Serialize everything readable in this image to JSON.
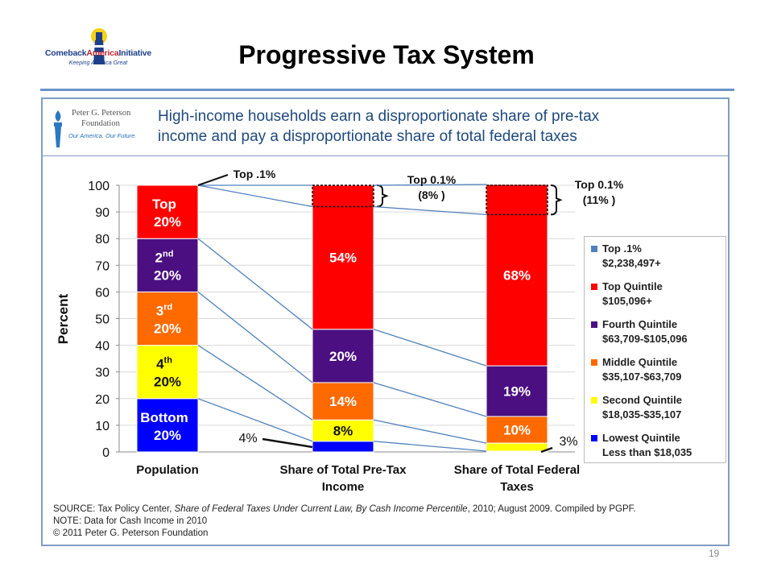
{
  "header": {
    "title": "Progressive Tax System",
    "logo": {
      "name": "Comeback",
      "name_accent": "America",
      "name_end": "Initiative",
      "tagline": "Keeping America Great"
    }
  },
  "banner": {
    "org_line1": "Peter G. Peterson",
    "org_line2": "Foundation",
    "org_tagline": "Our America. Our Future.",
    "headline_line1": "High-income households earn a disproportionate share of pre-tax",
    "headline_line2": "income and pay a disproportionate share of total federal taxes"
  },
  "chart_data": {
    "type": "bar",
    "stacked": true,
    "ylabel": "Percent",
    "ylim": [
      0,
      100
    ],
    "yticks": [
      0,
      10,
      20,
      30,
      40,
      50,
      60,
      70,
      80,
      90,
      100
    ],
    "categories": [
      "Population",
      "Share of Total Pre-Tax Income",
      "Share of Total Federal Taxes"
    ],
    "category_lines": [
      [
        "Population"
      ],
      [
        "Share of Total Pre-Tax",
        "Income"
      ],
      [
        "Share of Total Federal",
        "Taxes"
      ]
    ],
    "series": [
      {
        "key": "lowest",
        "color": "#0000ff",
        "values": [
          20,
          4,
          0.3
        ]
      },
      {
        "key": "second",
        "color": "#ffff00",
        "values": [
          20,
          8,
          3
        ]
      },
      {
        "key": "middle",
        "color": "#ff6a00",
        "values": [
          20,
          14,
          10
        ]
      },
      {
        "key": "fourth",
        "color": "#4b0f82",
        "values": [
          20,
          20,
          19
        ]
      },
      {
        "key": "top",
        "color": "#ff0000",
        "values": [
          20,
          54,
          68
        ]
      }
    ],
    "top_pct": {
      "color": "#4f81bd",
      "values": [
        0.1,
        8,
        11
      ]
    },
    "bar_labels": [
      [
        {
          "base": "Bottom",
          "l2": "20%"
        },
        {
          "base": "4",
          "sup": "th",
          "l2": "20%"
        },
        {
          "base": "3",
          "sup": "rd",
          "l2": "20%"
        },
        {
          "base": "2",
          "sup": "nd",
          "l2": "20%"
        },
        {
          "base": "Top",
          "l2": "20%"
        }
      ],
      [
        {
          "l2": ""
        },
        {
          "l2": "8%"
        },
        {
          "l2": "14%"
        },
        {
          "l2": "20%"
        },
        {
          "l2": "54%"
        }
      ],
      [
        {
          "l2": ""
        },
        {
          "l2": ""
        },
        {
          "l2": "10%"
        },
        {
          "l2": "19%"
        },
        {
          "l2": "68%"
        }
      ]
    ],
    "callouts": {
      "pop_top": "Top .1%",
      "income_top_l1": "Top 0.1%",
      "income_top_l2": "(8% )",
      "taxes_top_l1": "Top 0.1%",
      "taxes_top_l2": "(11% )",
      "income_low": "4%",
      "taxes_low": "3%"
    },
    "legend": [
      {
        "color": "#4f81bd",
        "l1": "Top .1%",
        "l2": "$2,238,497+"
      },
      {
        "color": "#ff0000",
        "l1": "Top Quintile",
        "l2": "$105,096+"
      },
      {
        "color": "#4b0f82",
        "l1": "Fourth Quintile",
        "l2": "$63,709-$105,096"
      },
      {
        "color": "#ff6a00",
        "l1": "Middle Quintile",
        "l2": "$35,107-$63,709"
      },
      {
        "color": "#ffff00",
        "l1": "Second Quintile",
        "l2": "$18,035-$35,107"
      },
      {
        "color": "#0000ff",
        "l1": "Lowest Quintile",
        "l2": "Less than $18,035"
      }
    ]
  },
  "source": {
    "label": "SOURCE: Tax Policy Center, ",
    "work": "Share of Federal Taxes Under Current Law, By Cash Income Percentile",
    "rest": ", 2010; August 2009. Compiled by PGPF.",
    "note": "NOTE: Data for Cash Income in 2010",
    "copyright": "© 2011 Peter G. Peterson Foundation"
  },
  "page_number": "19"
}
